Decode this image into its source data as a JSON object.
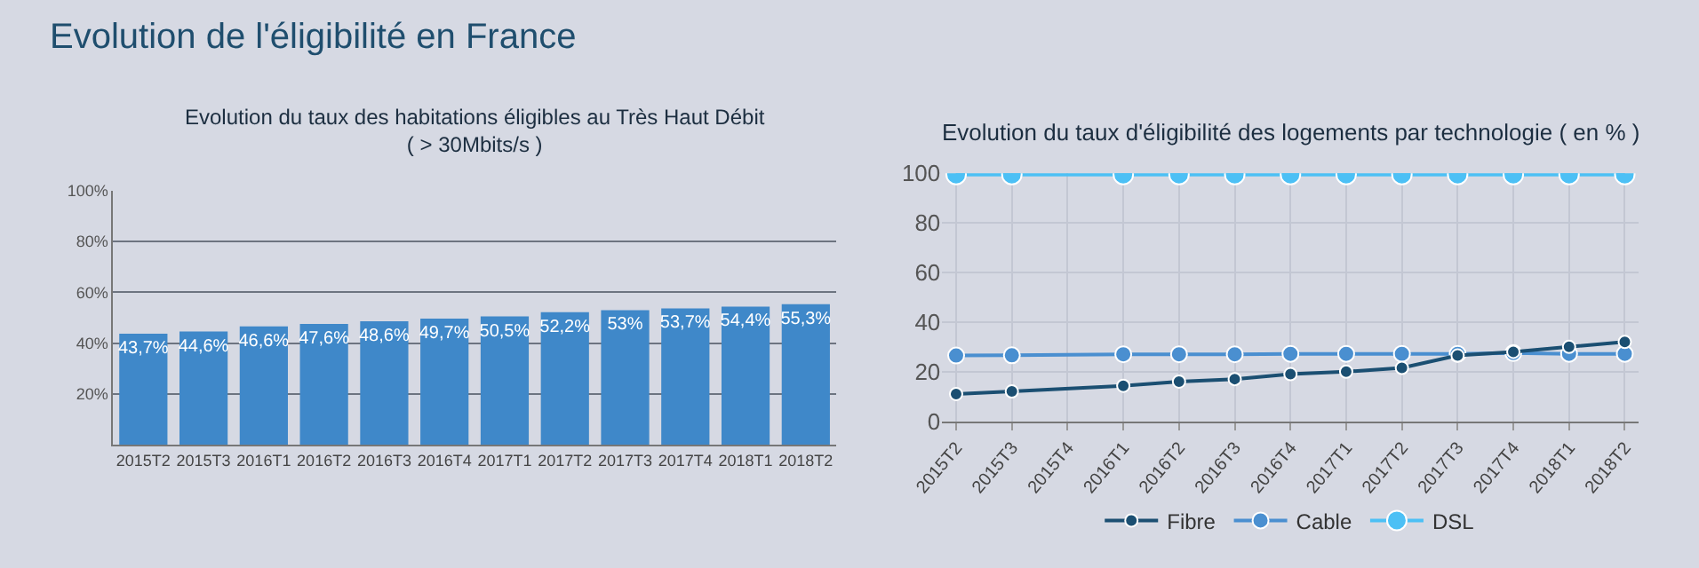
{
  "chart_data": [
    {
      "type": "bar",
      "title": "Evolution du taux des habitations éligibles au Très Haut Débit\n( > 30Mbits/s )",
      "annotations": [
        "Evolution de l'éligibilité en France"
      ],
      "categories": [
        "2015T2",
        "2015T3",
        "2016T1",
        "2016T2",
        "2016T3",
        "2016T4",
        "2017T1",
        "2017T2",
        "2017T3",
        "2017T4",
        "2018T1",
        "2018T2"
      ],
      "values": [
        43.7,
        44.6,
        46.6,
        47.6,
        48.6,
        49.7,
        50.5,
        52.2,
        53,
        53.7,
        54.4,
        55.3
      ],
      "value_labels": [
        "43,7%",
        "44,6%",
        "46,6%",
        "47,6%",
        "48,6%",
        "49,7%",
        "50,5%",
        "52,2%",
        "53%",
        "53,7%",
        "54,4%",
        "55,3%"
      ],
      "color": "#3f88c9",
      "ylim": [
        0,
        100
      ],
      "yticks": [
        {
          "value": 20,
          "label": "20%"
        },
        {
          "value": 40,
          "label": "40%"
        },
        {
          "value": 60,
          "label": "60%"
        },
        {
          "value": 80,
          "label": "80%"
        },
        {
          "value": 100,
          "label": "100%"
        }
      ],
      "grid": "y",
      "legend": false
    },
    {
      "type": "line",
      "title": "Evolution du taux d'éligibilité des logements par technologie ( en % )",
      "categories": [
        "2015T2",
        "2015T3",
        "2015T4",
        "2016T1",
        "2016T2",
        "2016T3",
        "2016T4",
        "2017T1",
        "2017T2",
        "2017T3",
        "2017T4",
        "2018T1",
        "2018T2"
      ],
      "series": [
        {
          "name": "Fibre",
          "color": "#1b4f72",
          "x": [
            "2015T2",
            "2015T3",
            "2016T1",
            "2016T2",
            "2016T3",
            "2016T4",
            "2017T1",
            "2017T2",
            "2017T3",
            "2017T4",
            "2018T1",
            "2018T2"
          ],
          "values": [
            11,
            12,
            14.3,
            16,
            17,
            19,
            20,
            21.5,
            26.5,
            28,
            30,
            32
          ]
        },
        {
          "name": "Cable",
          "color": "#4a8fd0",
          "x": [
            "2015T2",
            "2015T3",
            "2016T1",
            "2016T2",
            "2016T3",
            "2016T4",
            "2017T1",
            "2017T2",
            "2017T3",
            "2017T4",
            "2018T1",
            "2018T2"
          ],
          "values": [
            26.5,
            26.6,
            27,
            27,
            27,
            27.2,
            27.2,
            27.2,
            27.2,
            27.5,
            27.2,
            27.2
          ]
        },
        {
          "name": "DSL",
          "color": "#4cc0f5",
          "x": [
            "2015T2",
            "2015T3",
            "2016T1",
            "2016T2",
            "2016T3",
            "2016T4",
            "2017T1",
            "2017T2",
            "2017T3",
            "2017T4",
            "2018T1",
            "2018T2"
          ],
          "values": [
            99.5,
            99.5,
            99.5,
            99.5,
            99.5,
            99.5,
            99.5,
            99.5,
            99.5,
            99.5,
            99.5,
            99.5
          ]
        }
      ],
      "ylim": [
        0,
        100
      ],
      "yticks": [
        0,
        20,
        40,
        60,
        80,
        100
      ],
      "grid": true,
      "legend": "bottom",
      "marker": "circle",
      "line_style": "solid"
    }
  ]
}
